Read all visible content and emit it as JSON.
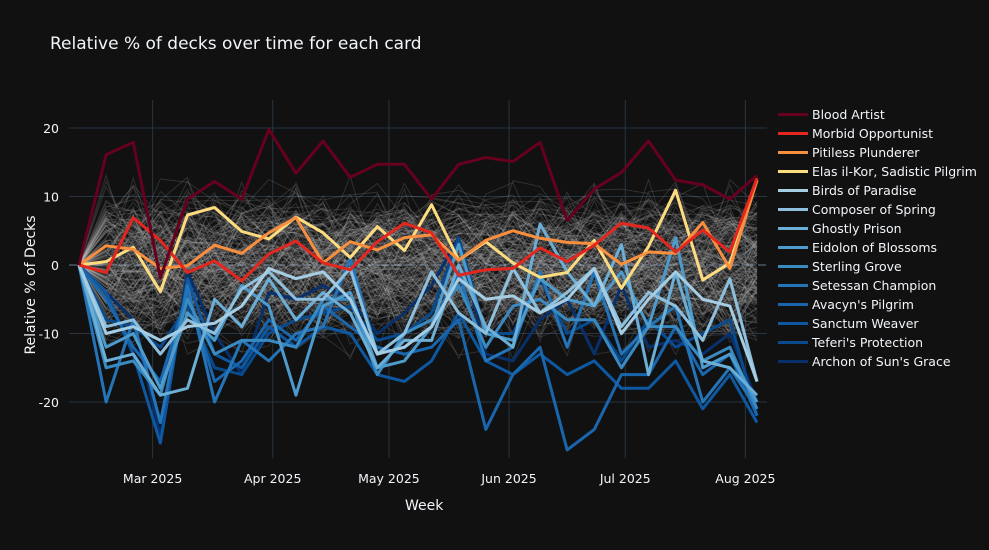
{
  "chart_data": {
    "type": "line",
    "title": "Relative  % of decks over time for each card",
    "xlabel": "Week",
    "ylabel": "Relative % of Decks",
    "ylim": [
      -27.7,
      24.1
    ],
    "yticks": [
      -20,
      -10,
      0,
      10,
      20
    ],
    "xticks": [
      {
        "date": "2025-03-01",
        "label": "Mar 2025"
      },
      {
        "date": "2025-04-01",
        "label": "Apr 2025"
      },
      {
        "date": "2025-05-01",
        "label": "May 2025"
      },
      {
        "date": "2025-06-01",
        "label": "Jun 2025"
      },
      {
        "date": "2025-07-01",
        "label": "Jul 2025"
      },
      {
        "date": "2025-08-01",
        "label": "Aug 2025"
      }
    ],
    "grid": true,
    "zero_line": "dashed",
    "legend_position": "right",
    "background_lines": "many unlabeled grey card lines",
    "x": [
      "2025-02-10",
      "2025-02-17",
      "2025-02-24",
      "2025-03-03",
      "2025-03-10",
      "2025-03-17",
      "2025-03-24",
      "2025-03-31",
      "2025-04-07",
      "2025-04-14",
      "2025-04-21",
      "2025-04-28",
      "2025-05-05",
      "2025-05-12",
      "2025-05-19",
      "2025-05-26",
      "2025-06-02",
      "2025-06-09",
      "2025-06-16",
      "2025-06-23",
      "2025-06-30",
      "2025-07-07",
      "2025-07-14",
      "2025-07-21",
      "2025-07-28",
      "2025-08-04"
    ],
    "series": [
      {
        "name": "Blood Artist",
        "color": "#67001f",
        "values": [
          0,
          16.1,
          17.9,
          -1.9,
          9.6,
          12.2,
          9.6,
          19.8,
          13.4,
          18.1,
          12.8,
          14.7,
          14.7,
          9.6,
          14.7,
          15.7,
          15.1,
          17.9,
          6.5,
          11.1,
          13.5,
          18.1,
          12.4,
          11.7,
          9.6,
          13.1
        ]
      },
      {
        "name": "Morbid Opportunist",
        "color": "#e3261e",
        "values": [
          0,
          -1.1,
          6.9,
          3.6,
          -1.1,
          0.6,
          -2.3,
          1.6,
          3.5,
          0.3,
          -0.7,
          3.4,
          6.1,
          4.7,
          -1.5,
          -0.7,
          -0.5,
          2.5,
          0.5,
          2.9,
          6.1,
          5.4,
          1.9,
          5.1,
          1.9,
          12.7
        ]
      },
      {
        "name": "Pitiless Plunderer",
        "color": "#f88f3f",
        "values": [
          0,
          2.8,
          2.3,
          -0.5,
          -0.1,
          2.9,
          1.7,
          4.7,
          6.9,
          0.3,
          3.4,
          2.2,
          4.0,
          4.4,
          0.7,
          3.6,
          5.0,
          3.9,
          3.3,
          3.1,
          0.1,
          1.9,
          1.7,
          6.2,
          -0.5,
          12.4
        ]
      },
      {
        "name": "Elas il-Kor, Sadistic Pilgrim",
        "color": "#fddc80",
        "values": [
          0,
          0.5,
          2.6,
          -3.9,
          7.3,
          8.4,
          4.9,
          3.8,
          7.0,
          4.7,
          1.1,
          5.6,
          2.1,
          8.8,
          0.7,
          3.4,
          0.3,
          -1.8,
          -1.1,
          3.6,
          -3.4,
          2.7,
          10.9,
          -2.2,
          0.3,
          12.4
        ]
      },
      {
        "name": "Birds of Paradise",
        "color": "#a5cde3",
        "values": [
          0,
          -10,
          -9,
          -11,
          -9,
          -8.5,
          -6,
          -0.5,
          -2,
          -1,
          -5,
          -13,
          -12,
          -9,
          -2,
          -5,
          -4.5,
          -7,
          -5,
          -0.5,
          -10,
          -5,
          -1,
          -5,
          -6,
          -17
        ]
      },
      {
        "name": "Composer of Spring",
        "color": "#8ec0dd",
        "values": [
          0,
          -9,
          -8,
          -13,
          -8,
          -10,
          -3.5,
          -1,
          -5,
          -5,
          -0.5,
          -13,
          -10,
          -1,
          -7,
          -10,
          -0.5,
          -7,
          -4,
          -0.5,
          -9,
          -4,
          -6,
          -11,
          -2,
          -17
        ]
      },
      {
        "name": "Ghostly Prison",
        "color": "#6baed6",
        "values": [
          0,
          -14,
          -13,
          -19,
          -18,
          -5,
          -9,
          -2,
          -8,
          -4,
          -7,
          -15,
          -11,
          -11,
          0,
          -9,
          -12,
          6,
          -1,
          -6,
          3,
          -16,
          -1,
          -14,
          -15,
          -19
        ]
      },
      {
        "name": "Eidolon of Blossoms",
        "color": "#4d9bcc",
        "values": [
          0,
          -12,
          -10,
          -18,
          -7,
          -11,
          -3,
          -6,
          -19,
          -6,
          -4,
          -15,
          -14,
          -9,
          3,
          -10,
          -11,
          -2,
          -5,
          -6,
          -1,
          -9,
          4,
          -15,
          -13,
          -20
        ]
      },
      {
        "name": "Sterling Grove",
        "color": "#3a8ac2",
        "values": [
          0,
          -15,
          -14,
          -19,
          -5,
          -13,
          -11,
          -11,
          -12,
          -5,
          -5,
          -16,
          -10,
          -8,
          -3,
          -12,
          -6,
          -5,
          -8,
          -8,
          -15,
          -9,
          -9,
          -14,
          -12,
          -21
        ]
      },
      {
        "name": "Setessan Champion",
        "color": "#2474b7",
        "values": [
          0,
          -20,
          -8,
          -23,
          -3,
          -20,
          -11,
          -14,
          -10,
          -9,
          1,
          -13,
          -12,
          -9,
          -1,
          -14,
          -12,
          -1,
          -12,
          -1,
          -13,
          -9,
          -6,
          -20,
          -15,
          -21
        ]
      },
      {
        "name": "Avacyn's Pilgrim",
        "color": "#1966ad",
        "values": [
          0,
          -5,
          -12,
          -17,
          -4,
          -17,
          -14,
          -8,
          -11,
          -6,
          -9,
          -12,
          -13,
          -12,
          -8,
          -24,
          -16,
          -12,
          -27,
          -24,
          -16,
          -16,
          -9,
          -16,
          -13,
          -22
        ]
      },
      {
        "name": "Sanctum Weaver",
        "color": "#0d58a1",
        "values": [
          0,
          -4,
          -13,
          -26,
          -2,
          -13,
          -15,
          -9,
          -12,
          -9,
          -10,
          -16,
          -17,
          -14,
          -7,
          -14,
          -16,
          -13,
          -16,
          -14,
          -18,
          -18,
          -14,
          -21,
          -16,
          -23
        ]
      },
      {
        "name": "Teferi's Protection",
        "color": "#084a8c",
        "values": [
          0,
          -8,
          -9,
          -12,
          -6,
          -15,
          -16,
          -10,
          -8,
          -7,
          -6,
          -11,
          -10,
          -7,
          4,
          -10,
          -10,
          -2,
          -10,
          -8,
          -14,
          -8,
          -12,
          -10,
          -8,
          -22
        ]
      },
      {
        "name": "Archon of Sun's Grace",
        "color": "#08306b",
        "values": [
          0,
          -4,
          -8,
          -25,
          -1,
          -10,
          -16,
          -4,
          -5,
          -3,
          -5,
          -10,
          -7,
          -3,
          4,
          -13,
          -14,
          -8,
          -5,
          -13,
          -3,
          -12,
          -11,
          -13,
          -10,
          -20
        ]
      }
    ]
  },
  "colors": {
    "background": "#111111",
    "grid": "#283442",
    "text": "#f2f5fa"
  }
}
